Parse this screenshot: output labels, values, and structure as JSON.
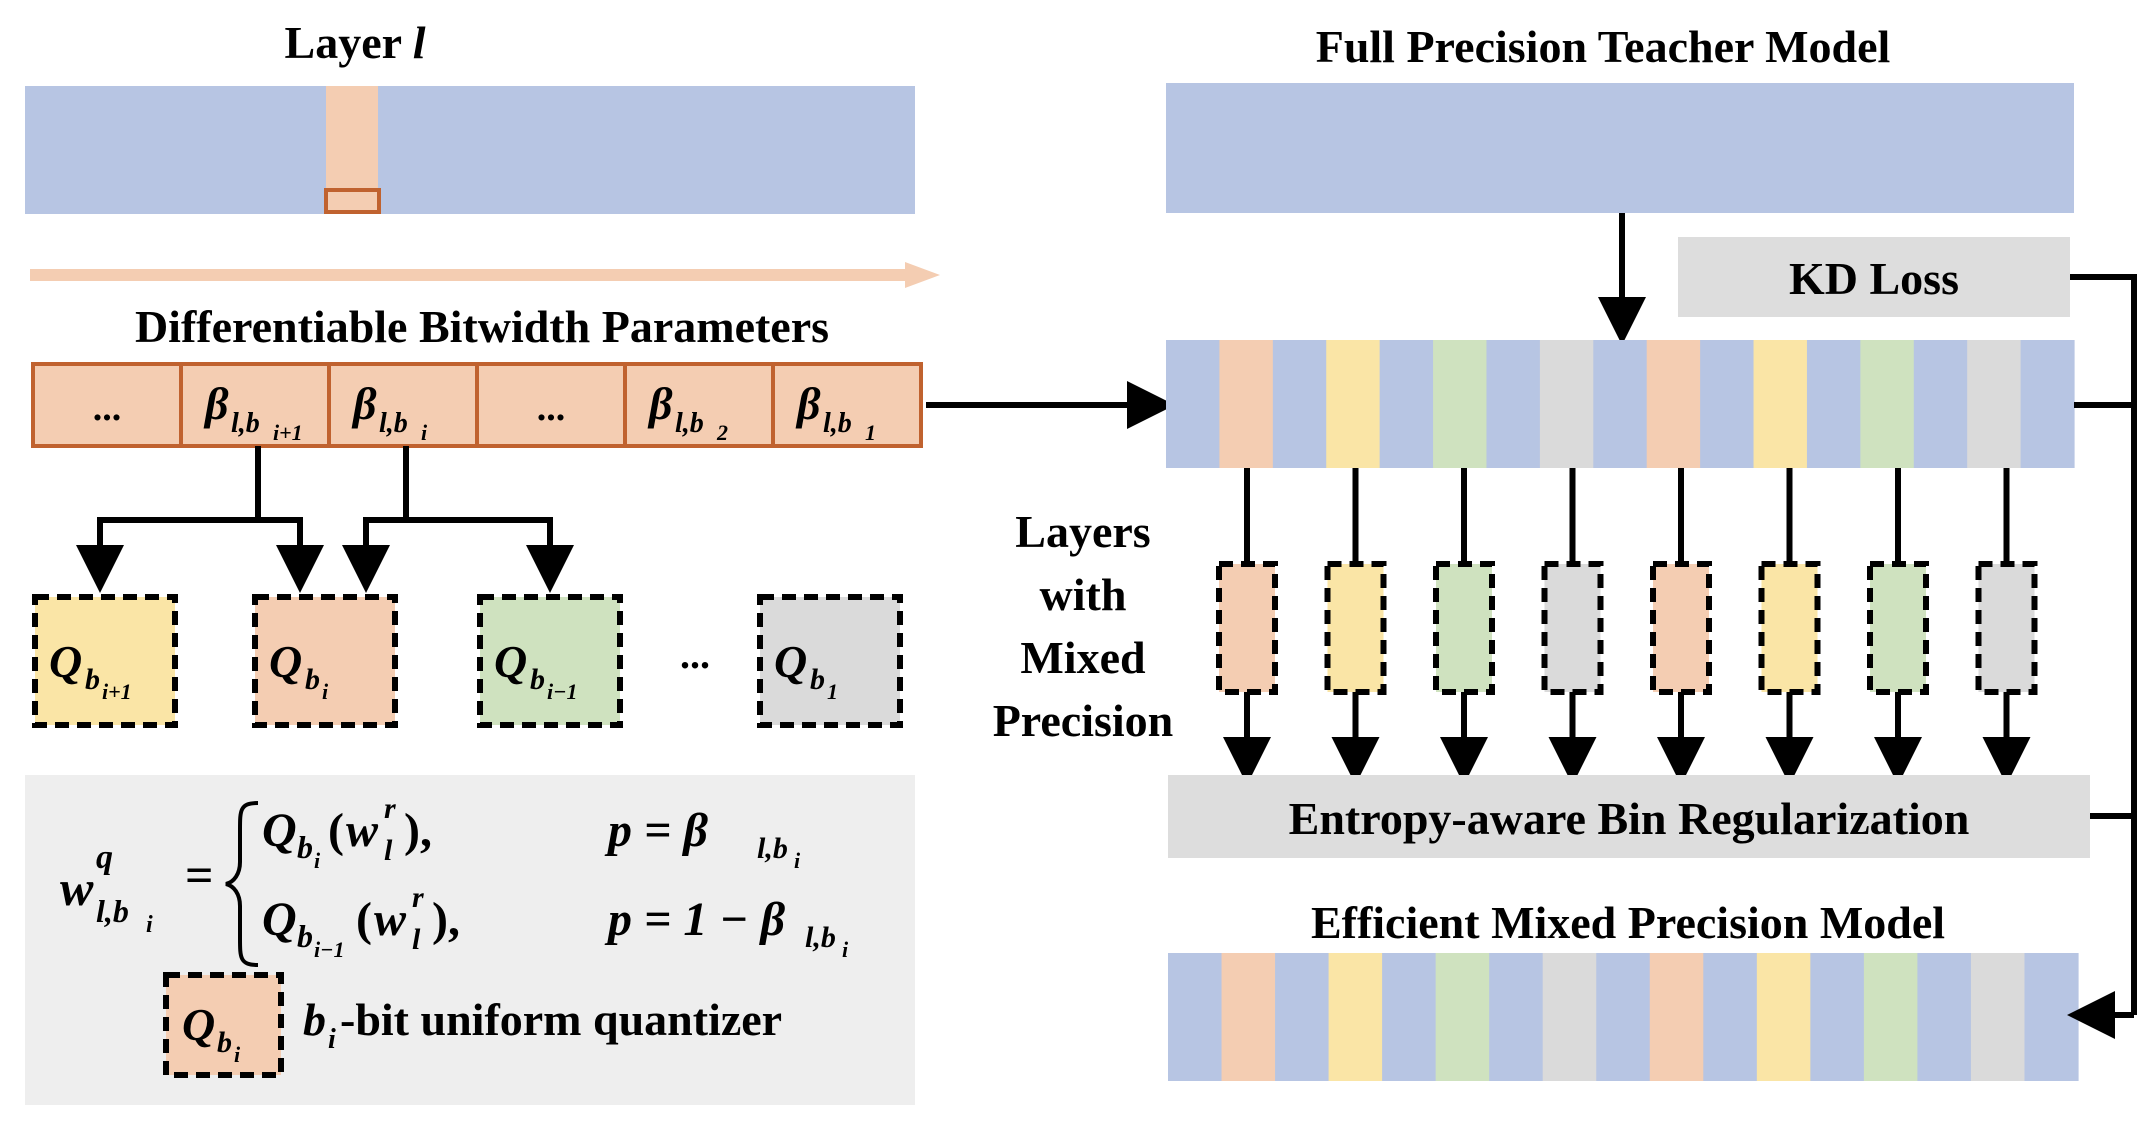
{
  "colors": {
    "blue": "#b7c5e3",
    "peach": "#f4cdb2",
    "yellow": "#fae5a6",
    "green": "#cfe2bf",
    "gray": "#dadada",
    "formula_bg": "#eeeeee",
    "kd_bg": "#dddddd",
    "param_border": "#c0622f"
  },
  "layer": {
    "title_prefix": "Layer ",
    "title_var": "l"
  },
  "params": {
    "title": "Differentiable Bitwidth Parameters",
    "cells": [
      {
        "kind": "dots",
        "text": "..."
      },
      {
        "kind": "beta",
        "main": "β",
        "sub": "l,b",
        "subsub": "i+1"
      },
      {
        "kind": "beta",
        "main": "β",
        "sub": "l,b",
        "subsub": "i"
      },
      {
        "kind": "dots",
        "text": "..."
      },
      {
        "kind": "beta",
        "main": "β",
        "sub": "l,b",
        "subsub": "2"
      },
      {
        "kind": "beta",
        "main": "β",
        "sub": "l,b",
        "subsub": "1"
      }
    ]
  },
  "quantizers": [
    {
      "main": "Q",
      "sub": "b",
      "subsub": "i+1",
      "color": "yellow"
    },
    {
      "main": "Q",
      "sub": "b",
      "subsub": "i",
      "color": "peach"
    },
    {
      "main": "Q",
      "sub": "b",
      "subsub": "i−1",
      "color": "green"
    },
    {
      "main": "Q",
      "sub": "b",
      "subsub": "1",
      "color": "gray"
    }
  ],
  "quantizer_dots": "...",
  "formula": {
    "lhs": {
      "main": "w",
      "sup": "q",
      "sub": "l,b",
      "subsub": "i"
    },
    "eq": "=",
    "case1": {
      "q": "Q",
      "qsub": "b",
      "qsubsub": "i",
      "open": "(",
      "w": "w",
      "wsup": "r",
      "wsub": "l",
      "close": "),",
      "cond": "p = β",
      "csub": "l,b",
      "csubsub": "i"
    },
    "case2": {
      "q": "Q",
      "qsub": "b",
      "qsubsub": "i−1",
      "open": "(",
      "w": "w",
      "wsup": "r",
      "wsub": "l",
      "close": "),",
      "cond": "p = 1 − β",
      "csub": "l,b",
      "csubsub": "i"
    }
  },
  "legend": {
    "q": "Q",
    "qsub": "b",
    "qsubsub": "i",
    "b": "b",
    "bsub": "i",
    "label": " -bit uniform quantizer"
  },
  "teacher": {
    "title": "Full Precision Teacher Model"
  },
  "kd_loss": {
    "label": "KD Loss"
  },
  "stripes": [
    "blue",
    "peach",
    "blue",
    "yellow",
    "blue",
    "green",
    "blue",
    "gray",
    "blue",
    "peach",
    "blue",
    "yellow",
    "blue",
    "green",
    "blue",
    "gray",
    "blue"
  ],
  "layers_label": [
    "Layers",
    "with",
    "Mixed",
    "Precision"
  ],
  "small_layers": [
    "peach",
    "yellow",
    "green",
    "gray",
    "peach",
    "yellow",
    "green",
    "gray"
  ],
  "regularization": {
    "label": "Entropy-aware Bin Regularization"
  },
  "efficient": {
    "title": "Efficient Mixed Precision Model"
  }
}
